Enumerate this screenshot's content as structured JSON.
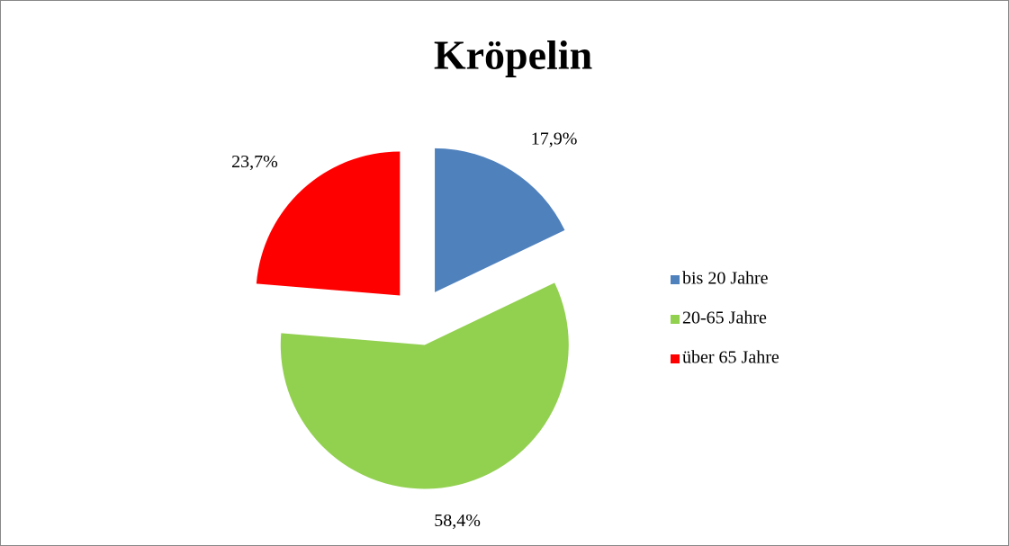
{
  "chart_data": {
    "type": "pie",
    "title": "Kröpelin",
    "categories": [
      "bis 20 Jahre",
      "20-65 Jahre",
      "über 65 Jahre"
    ],
    "values": [
      17.9,
      58.4,
      23.7
    ],
    "value_labels": [
      "17,9%",
      "58,4%",
      "23,7%"
    ],
    "colors": [
      "#4f81bd",
      "#92d050",
      "#ff0000"
    ],
    "exploded": true,
    "legend": "right"
  }
}
